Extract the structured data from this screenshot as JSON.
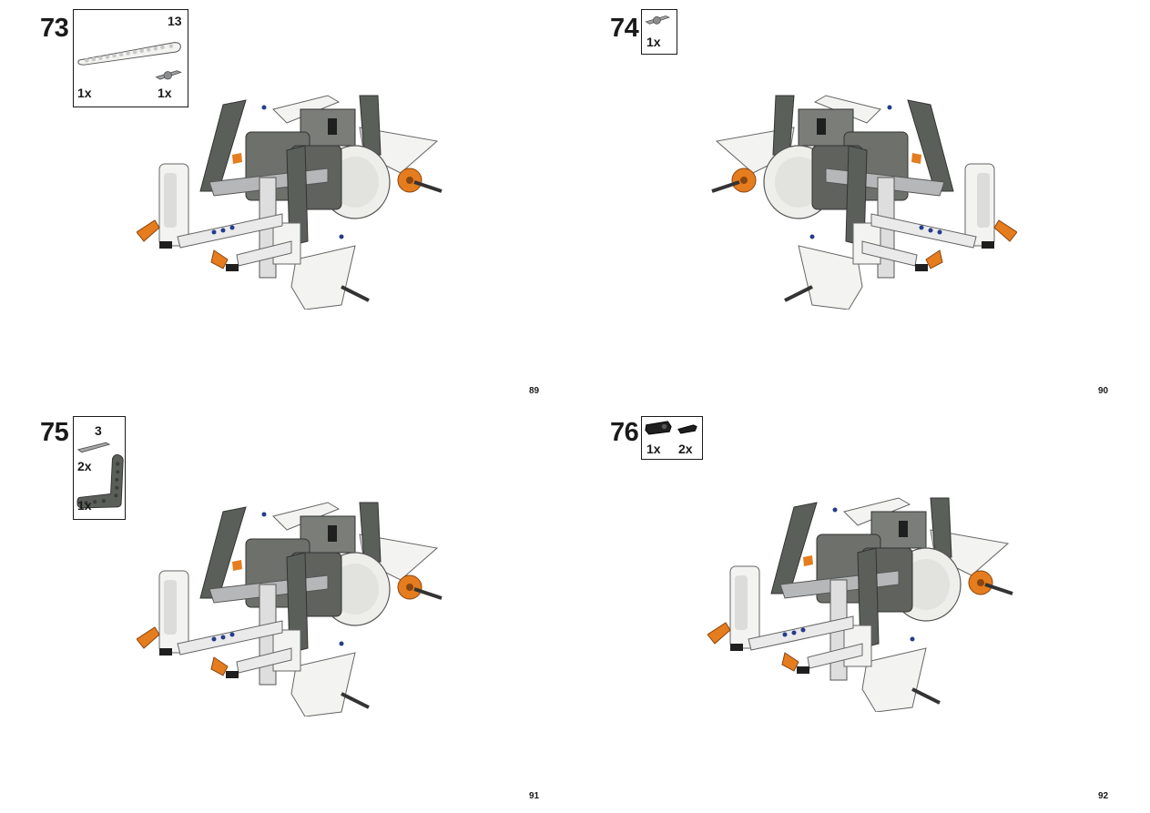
{
  "steps": [
    {
      "number": "73",
      "page": "89",
      "parts": [
        {
          "name": "beam-13",
          "size_label": "13",
          "qty": "1x"
        },
        {
          "name": "axle-pin",
          "qty": "1x"
        }
      ]
    },
    {
      "number": "74",
      "page": "90",
      "parts": [
        {
          "name": "axle-pin",
          "qty": "1x"
        }
      ]
    },
    {
      "number": "75",
      "page": "91",
      "parts": [
        {
          "name": "axle-3",
          "size_label": "3",
          "qty": "2x"
        },
        {
          "name": "angled-beam",
          "qty": "1x"
        }
      ]
    },
    {
      "number": "76",
      "page": "92",
      "parts": [
        {
          "name": "pin-connector",
          "qty": "1x"
        },
        {
          "name": "friction-pin",
          "qty": "2x"
        }
      ]
    }
  ],
  "colors": {
    "dark_gray": "#5b5f59",
    "light_gray": "#a7a9ab",
    "white_part": "#f3f3f1",
    "orange": "#e57c1e",
    "black_part": "#1f1f1f",
    "blue_pin": "#243c8c"
  }
}
